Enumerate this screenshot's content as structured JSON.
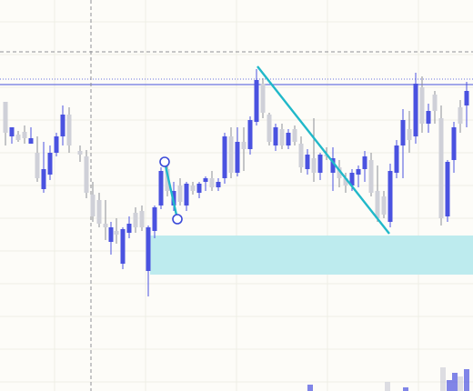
{
  "colors": {
    "background": "#fdfcf8",
    "grid": "#efeee6",
    "bull": "#4a52e0",
    "bear": "#cfd0d8",
    "wick": "#8c8e96",
    "trendline": "#21b8c9",
    "zone": "#bdebee",
    "hline": "#6b74e0",
    "crosshair": "#8f9096",
    "marker_stroke": "#3b4ad8"
  },
  "icons": {
    "drawing_handle": "circle-handle-icon"
  },
  "chart_data": {
    "type": "candlestick",
    "candles": [
      {
        "o": 0,
        "h": 0,
        "l": 0,
        "c": 0,
        "bull": false
      },
      {
        "o": 0,
        "h": 0,
        "l": 0,
        "c": 0,
        "bull": false
      }
    ]
  }
}
